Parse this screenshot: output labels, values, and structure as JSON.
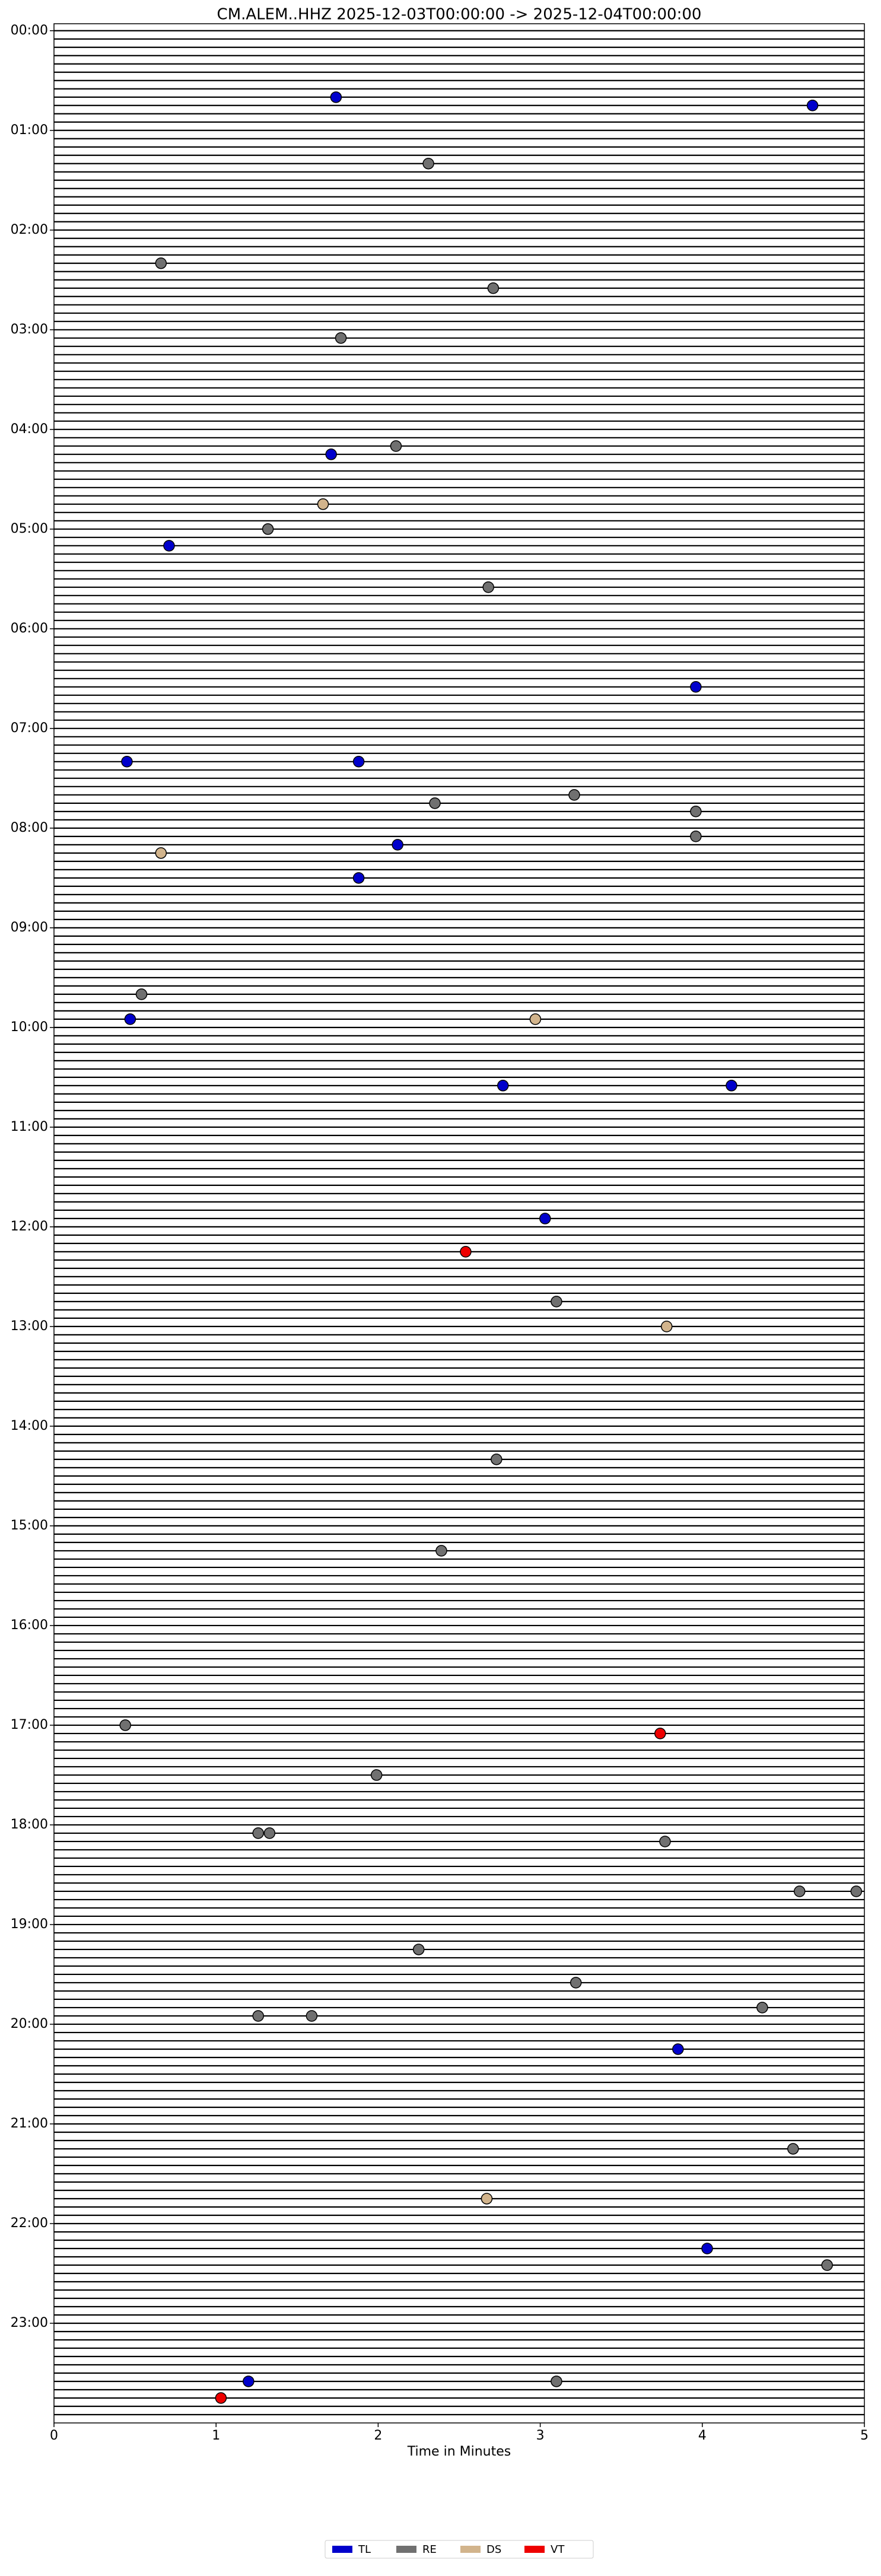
{
  "chart_data": {
    "type": "scatter",
    "title": "CM.ALEM..HHZ  2025-12-03T00:00:00 -> 2025-12-04T00:00:00",
    "xlabel": "Time in Minutes",
    "xlim": [
      0,
      5
    ],
    "xticks": [
      0,
      1,
      2,
      3,
      4,
      5
    ],
    "ylim": [
      -0.07,
      24
    ],
    "y_inverted": true,
    "yticks": [
      {
        "value": 0,
        "label": "00:00"
      },
      {
        "value": 1,
        "label": "01:00"
      },
      {
        "value": 2,
        "label": "02:00"
      },
      {
        "value": 3,
        "label": "03:00"
      },
      {
        "value": 4,
        "label": "04:00"
      },
      {
        "value": 5,
        "label": "05:00"
      },
      {
        "value": 6,
        "label": "06:00"
      },
      {
        "value": 7,
        "label": "07:00"
      },
      {
        "value": 8,
        "label": "08:00"
      },
      {
        "value": 9,
        "label": "09:00"
      },
      {
        "value": 10,
        "label": "10:00"
      },
      {
        "value": 11,
        "label": "11:00"
      },
      {
        "value": 12,
        "label": "12:00"
      },
      {
        "value": 13,
        "label": "13:00"
      },
      {
        "value": 14,
        "label": "14:00"
      },
      {
        "value": 15,
        "label": "15:00"
      },
      {
        "value": 16,
        "label": "16:00"
      },
      {
        "value": 17,
        "label": "17:00"
      },
      {
        "value": 18,
        "label": "18:00"
      },
      {
        "value": 19,
        "label": "19:00"
      },
      {
        "value": 20,
        "label": "20:00"
      },
      {
        "value": 21,
        "label": "21:00"
      },
      {
        "value": 22,
        "label": "22:00"
      },
      {
        "value": 23,
        "label": "23:00"
      }
    ],
    "legend_loc": "lower center",
    "series": [
      {
        "name": "TL",
        "color": "#0000cc",
        "x": [
          1.74,
          4.68,
          1.71,
          0.71,
          3.96,
          0.45,
          1.88,
          2.12,
          1.88,
          0.47,
          2.77,
          4.18,
          3.03,
          3.85,
          4.03,
          1.2
        ],
        "values": [
          0.667,
          0.75,
          4.25,
          5.167,
          6.583,
          7.333,
          7.333,
          8.167,
          8.5,
          9.917,
          10.583,
          10.583,
          11.917,
          20.25,
          22.25,
          23.583
        ]
      },
      {
        "name": "RE",
        "color": "#707070",
        "x": [
          2.31,
          0.66,
          2.71,
          1.77,
          2.11,
          1.32,
          2.68,
          2.35,
          3.21,
          3.96,
          3.96,
          0.54,
          3.1,
          2.73,
          2.39,
          0.44,
          1.99,
          1.26,
          1.33,
          3.77,
          4.6,
          4.95,
          2.25,
          3.22,
          1.26,
          1.59,
          4.37,
          4.56,
          4.77,
          3.1
        ],
        "values": [
          1.333,
          2.333,
          2.583,
          3.083,
          4.167,
          5.0,
          5.583,
          7.75,
          7.667,
          7.833,
          8.083,
          9.667,
          12.75,
          14.333,
          15.25,
          17.0,
          17.5,
          18.083,
          18.083,
          18.167,
          18.667,
          18.667,
          19.25,
          19.583,
          19.917,
          19.917,
          19.833,
          21.25,
          22.417,
          23.583
        ]
      },
      {
        "name": "DS",
        "color": "#d2b48c",
        "x": [
          1.66,
          0.66,
          2.97,
          3.78,
          2.67
        ],
        "values": [
          4.75,
          8.25,
          9.917,
          13.0,
          21.75
        ]
      },
      {
        "name": "VT",
        "color": "#ee0000",
        "x": [
          2.54,
          3.74,
          1.03
        ],
        "values": [
          12.25,
          17.083,
          23.75
        ]
      }
    ]
  }
}
